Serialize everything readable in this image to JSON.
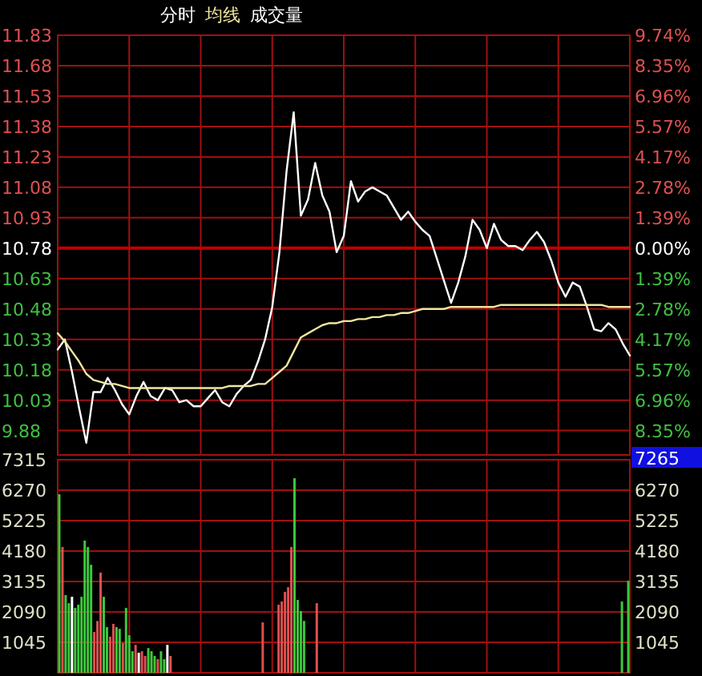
{
  "chart_data": [
    {
      "type": "line",
      "tick_labels": "y",
      "grid": true,
      "categories": [
        null,
        null,
        null,
        null,
        null,
        null,
        null,
        null,
        null,
        null,
        null,
        null,
        null,
        null,
        null,
        null,
        null,
        null,
        null,
        null,
        null,
        null,
        null,
        null,
        null,
        null,
        null,
        null,
        null,
        null,
        null,
        null,
        null,
        null,
        null,
        null,
        null,
        null,
        null,
        null,
        null,
        null,
        null,
        null,
        null,
        null,
        null,
        null,
        null,
        null,
        null,
        null,
        null,
        null,
        null,
        null,
        null,
        null,
        null,
        null,
        null,
        null,
        null,
        null,
        null,
        null,
        null,
        null,
        null,
        null,
        null,
        null,
        null,
        null,
        null,
        null,
        null,
        null,
        null,
        null,
        null
      ],
      "ylim": [
        9.76,
        11.83
      ],
      "yticks": [
        11.83,
        11.68,
        11.53,
        11.38,
        11.23,
        11.08,
        10.93,
        10.78,
        10.63,
        10.48,
        10.33,
        10.18,
        10.03,
        9.88
      ],
      "y2lim": [
        -9.46,
        9.74
      ],
      "y2ticks": [
        {
          "value": 9.74,
          "label": "9.74%"
        },
        {
          "value": 8.35,
          "label": "8.35%"
        },
        {
          "value": 6.96,
          "label": "6.96%"
        },
        {
          "value": 5.57,
          "label": "5.57%"
        },
        {
          "value": 4.17,
          "label": "4.17%"
        },
        {
          "value": 2.78,
          "label": "2.78%"
        },
        {
          "value": 1.39,
          "label": "1.39%"
        },
        {
          "value": 0,
          "label": "0.00%"
        },
        {
          "value": -1.39,
          "label": "1.39%"
        },
        {
          "value": -2.78,
          "label": "2.78%"
        },
        {
          "value": -4.17,
          "label": "4.17%"
        },
        {
          "value": -5.57,
          "label": "5.57%"
        },
        {
          "value": -6.96,
          "label": "6.96%"
        },
        {
          "value": -8.35,
          "label": "8.35%"
        }
      ],
      "ref_lines": [
        {
          "axis": "y",
          "value": 10.78,
          "color": "#c00000"
        }
      ],
      "series": [
        {
          "name": "分时",
          "color": "#ffffff",
          "values": [
            10.28,
            10.33,
            10.17,
            9.99,
            9.82,
            10.07,
            10.07,
            10.14,
            10.08,
            10.01,
            9.96,
            10.05,
            10.12,
            10.05,
            10.03,
            10.09,
            10.08,
            10.02,
            10.03,
            10.0,
            10.0,
            10.04,
            10.08,
            10.02,
            10.0,
            10.06,
            10.1,
            10.13,
            10.22,
            10.33,
            10.49,
            10.76,
            11.16,
            11.45,
            10.94,
            11.02,
            11.2,
            11.04,
            10.96,
            10.76,
            10.84,
            11.11,
            11.01,
            11.06,
            11.08,
            11.06,
            11.04,
            10.98,
            10.92,
            10.96,
            10.91,
            10.87,
            10.84,
            10.73,
            10.62,
            10.51,
            10.61,
            10.74,
            10.92,
            10.87,
            10.78,
            10.9,
            10.82,
            10.79,
            10.79,
            10.77,
            10.82,
            10.86,
            10.81,
            10.72,
            10.61,
            10.54,
            10.61,
            10.59,
            10.49,
            10.38,
            10.37,
            10.41,
            10.38,
            10.31,
            10.25
          ]
        },
        {
          "name": "均线",
          "color": "#f0e6a0",
          "values": [
            10.36,
            10.32,
            10.27,
            10.22,
            10.16,
            10.13,
            10.12,
            10.11,
            10.11,
            10.1,
            10.09,
            10.09,
            10.09,
            10.09,
            10.09,
            10.09,
            10.09,
            10.09,
            10.09,
            10.09,
            10.09,
            10.09,
            10.09,
            10.09,
            10.1,
            10.1,
            10.1,
            10.1,
            10.11,
            10.11,
            10.14,
            10.17,
            10.2,
            10.27,
            10.34,
            10.36,
            10.38,
            10.4,
            10.41,
            10.41,
            10.42,
            10.42,
            10.43,
            10.43,
            10.44,
            10.44,
            10.45,
            10.45,
            10.46,
            10.46,
            10.47,
            10.48,
            10.48,
            10.48,
            10.48,
            10.49,
            10.49,
            10.49,
            10.49,
            10.49,
            10.49,
            10.49,
            10.5,
            10.5,
            10.5,
            10.5,
            10.5,
            10.5,
            10.5,
            10.5,
            10.5,
            10.5,
            10.5,
            10.5,
            10.5,
            10.5,
            10.5,
            10.49,
            10.49,
            10.49,
            10.49
          ]
        }
      ]
    },
    {
      "type": "bar",
      "tick_labels": "y",
      "grid": true,
      "categories": [
        null,
        null,
        null,
        null,
        null,
        null,
        null,
        null,
        null,
        null,
        null,
        null,
        null,
        null,
        null,
        null,
        null,
        null,
        null,
        null,
        null,
        null,
        null,
        null,
        null,
        null,
        null,
        null,
        null,
        null,
        null,
        null,
        null,
        null,
        null,
        null,
        null,
        null,
        null,
        null,
        null,
        null,
        null,
        null,
        null,
        null,
        null,
        null,
        null,
        null,
        null,
        null,
        null,
        null,
        null,
        null,
        null,
        null,
        null,
        null,
        null,
        null,
        null,
        null,
        null,
        null,
        null,
        null,
        null,
        null,
        null,
        null,
        null,
        null,
        null,
        null,
        null,
        null,
        null,
        null,
        null,
        null,
        null,
        null,
        null,
        null,
        null,
        null,
        null,
        null,
        null,
        null,
        null,
        null,
        null,
        null,
        null,
        null,
        null,
        null,
        null,
        null,
        null,
        null,
        null,
        null,
        null,
        null,
        null,
        null,
        null,
        null,
        null,
        null,
        null,
        null,
        null,
        null,
        null,
        null,
        null,
        null,
        null,
        null,
        null,
        null,
        null,
        null,
        null,
        null,
        null,
        null,
        null,
        null,
        null,
        null,
        null,
        null,
        null,
        null,
        null,
        null,
        null,
        null,
        null,
        null,
        null,
        null,
        null,
        null,
        null,
        null,
        null,
        null,
        null,
        null,
        null,
        null,
        null,
        null,
        null,
        null,
        null,
        null,
        null,
        null,
        null,
        null,
        null,
        null,
        null,
        null,
        null,
        null,
        null,
        null,
        null,
        null,
        null,
        null
      ],
      "ylim": [
        0,
        7315
      ],
      "yticks": [
        7315,
        6270,
        5225,
        4180,
        3135,
        2090,
        1045
      ],
      "y2lim": [
        0,
        7315
      ],
      "y2ticks": [
        6270,
        5225,
        4180,
        3135,
        2090,
        1045
      ],
      "annotations": [
        "7265"
      ],
      "series": [
        {
          "name": "成交量",
          "values": [
            6130,
            4320,
            2670,
            2390,
            2610,
            2230,
            2340,
            2610,
            4540,
            4320,
            3710,
            1400,
            1780,
            3440,
            2610,
            1570,
            1240,
            1680,
            1570,
            1510,
            1020,
            2230,
            1290,
            740,
            960,
            690,
            740,
            580,
            850,
            740,
            580,
            470,
            740,
            470,
            960,
            580,
            null,
            null,
            null,
            null,
            null,
            null,
            null,
            null,
            null,
            null,
            null,
            null,
            null,
            null,
            null,
            null,
            null,
            null,
            null,
            null,
            null,
            null,
            null,
            null,
            null,
            null,
            null,
            null,
            1730,
            null,
            null,
            null,
            null,
            2340,
            2450,
            2780,
            2940,
            4320,
            6680,
            2500,
            2120,
            1780,
            null,
            null,
            null,
            2390,
            null,
            null,
            null,
            null,
            null,
            null,
            null,
            null,
            null,
            null,
            null,
            null,
            null,
            null,
            null,
            null,
            null,
            null,
            null,
            null,
            null,
            null,
            null,
            null,
            null,
            null,
            null,
            null,
            null,
            null,
            null,
            null,
            null,
            null,
            null,
            null,
            null,
            null,
            null,
            null,
            null,
            null,
            null,
            null,
            null,
            null,
            null,
            null,
            null,
            null,
            null,
            null,
            null,
            null,
            null,
            null,
            null,
            null,
            null,
            null,
            null,
            null,
            null,
            null,
            null,
            null,
            null,
            null,
            null,
            null,
            null,
            null,
            null,
            null,
            null,
            null,
            null,
            null,
            null,
            null,
            null,
            null,
            null,
            null,
            null,
            null,
            null,
            null,
            null,
            null,
            null,
            null,
            null,
            null,
            null,
            2450,
            null,
            3160
          ],
          "colors": [
            "#3cc83c",
            "#e05050",
            "#3cc83c",
            "#3cc83c",
            "#ffffff",
            "#3cc83c",
            "#3cc83c",
            "#3cc83c",
            "#3cc83c",
            "#3cc83c",
            "#3cc83c",
            "#e05050",
            "#e05050",
            "#e05050",
            "#3cc83c",
            "#3cc83c",
            "#e05050",
            "#e05050",
            "#3cc83c",
            "#3cc83c",
            "#e05050",
            "#3cc83c",
            "#3cc83c",
            "#3cc83c",
            "#e05050",
            "#ffffff",
            "#e05050",
            "#e05050",
            "#3cc83c",
            "#3cc83c",
            "#3cc83c",
            "#e05050",
            "#3cc83c",
            "#3cc83c",
            "#ffffff",
            "#e05050",
            null,
            null,
            null,
            null,
            null,
            null,
            null,
            null,
            null,
            null,
            null,
            null,
            null,
            null,
            null,
            null,
            null,
            null,
            null,
            null,
            null,
            null,
            null,
            null,
            null,
            null,
            null,
            null,
            "#e05050",
            null,
            null,
            null,
            null,
            "#e05050",
            "#e05050",
            "#e05050",
            "#e05050",
            "#e05050",
            "#3cc83c",
            "#3cc83c",
            "#3cc83c",
            "#3cc83c",
            null,
            null,
            null,
            "#e05050",
            null,
            null,
            null,
            null,
            null,
            null,
            null,
            null,
            null,
            null,
            null,
            null,
            null,
            null,
            null,
            null,
            null,
            null,
            null,
            null,
            null,
            null,
            null,
            null,
            null,
            null,
            null,
            null,
            null,
            null,
            null,
            null,
            null,
            null,
            null,
            null,
            null,
            null,
            null,
            null,
            null,
            null,
            null,
            null,
            null,
            null,
            null,
            null,
            null,
            null,
            null,
            null,
            null,
            null,
            null,
            null,
            null,
            null,
            null,
            null,
            null,
            null,
            null,
            null,
            null,
            null,
            null,
            null,
            null,
            null,
            null,
            null,
            null,
            null,
            null,
            null,
            null,
            null,
            null,
            null,
            null,
            null,
            null,
            null,
            null,
            null,
            null,
            null,
            null,
            null,
            null,
            null,
            null,
            null,
            null,
            "#3cc83c",
            null,
            "#3cc83c"
          ]
        }
      ]
    }
  ]
}
